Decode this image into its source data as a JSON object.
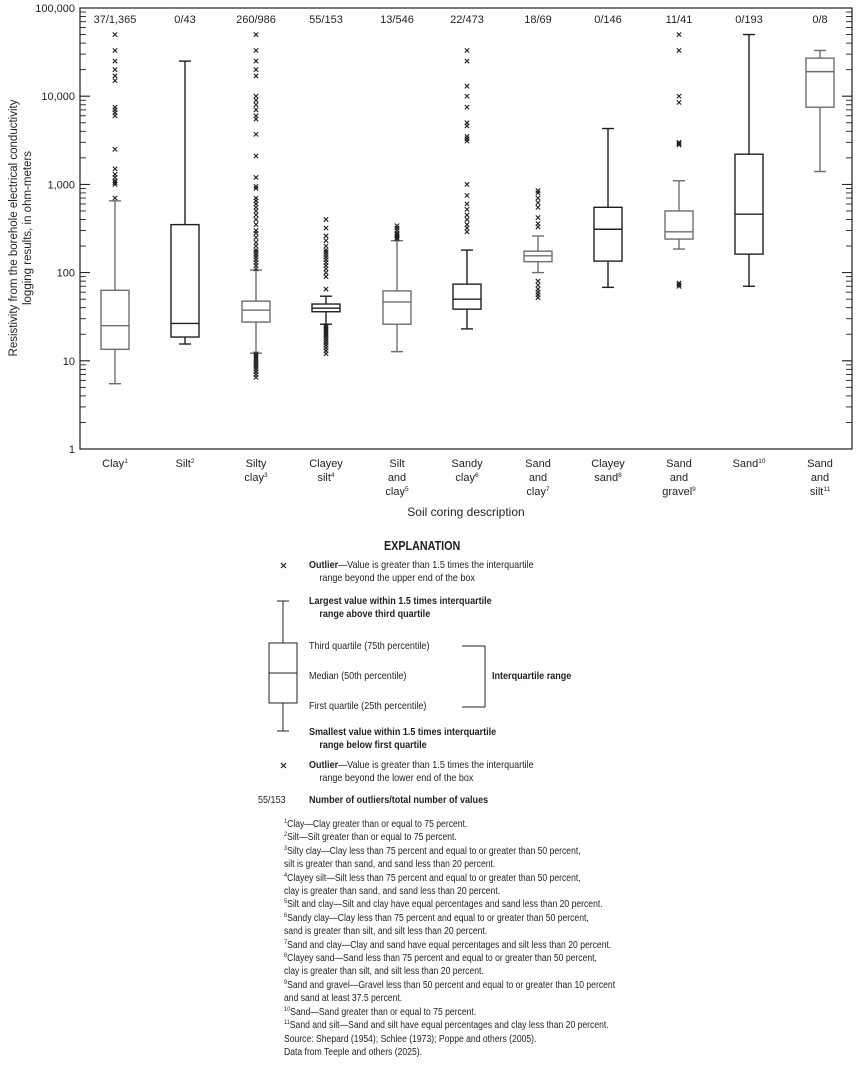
{
  "chart_data": {
    "type": "box",
    "title": "",
    "xlabel": "Soil coring description",
    "ylabel": "Resistivity from the borehole electrical conductivity logging results, in ohm-meters",
    "yscale": "log",
    "ylim": [
      1,
      100000
    ],
    "yticks": [
      {
        "value": 1,
        "label": "1"
      },
      {
        "value": 10,
        "label": "10"
      },
      {
        "value": 100,
        "label": "100"
      },
      {
        "value": 1000,
        "label": "1,000"
      },
      {
        "value": 10000,
        "label": "10,000"
      },
      {
        "value": 100000,
        "label": "100,000"
      }
    ],
    "grid": false,
    "categories": [
      {
        "label": [
          "Clay"
        ],
        "footnote": "1",
        "counts": "37/1,365",
        "whisker_low": 5.5,
        "q1": 13.5,
        "median": 25,
        "q3": 63,
        "whisker_high": 650,
        "outliers": [
          700,
          1000,
          1050,
          1100,
          1200,
          1300,
          1500,
          2500,
          6000,
          6500,
          7000,
          7500,
          15000,
          17000,
          20000,
          25000,
          33000,
          50000
        ]
      },
      {
        "label": [
          "Silt"
        ],
        "footnote": "2",
        "counts": "0/43",
        "whisker_low": 15.5,
        "q1": 18.6,
        "median": 26.5,
        "q3": 350,
        "whisker_high": 25000,
        "outliers": []
      },
      {
        "label": [
          "Silty",
          "clay"
        ],
        "footnote": "3",
        "counts": "260/986",
        "whisker_low": 12.2,
        "q1": 27.5,
        "median": 37.5,
        "q3": 47.5,
        "whisker_high": 107,
        "outliers": [
          6.5,
          7,
          7.5,
          8,
          8.5,
          9,
          9.5,
          10,
          10.5,
          11,
          11.5,
          12,
          110,
          120,
          130,
          140,
          150,
          160,
          170,
          180,
          200,
          220,
          250,
          280,
          300,
          350,
          400,
          450,
          500,
          550,
          600,
          650,
          700,
          900,
          950,
          1200,
          2100,
          3700,
          5500,
          6000,
          7000,
          8000,
          9000,
          10000,
          17000,
          20000,
          25000,
          33000,
          50000
        ]
      },
      {
        "label": [
          "Clayey",
          "silt"
        ],
        "footnote": "4",
        "counts": "55/153",
        "whisker_low": 26,
        "q1": 36,
        "median": 39.5,
        "q3": 44,
        "whisker_high": 54,
        "outliers": [
          12,
          13,
          14,
          15,
          16,
          17,
          18,
          19,
          20,
          21,
          22,
          23,
          24,
          25,
          65,
          90,
          100,
          110,
          120,
          130,
          140,
          150,
          160,
          170,
          180,
          200,
          230,
          260,
          320,
          400
        ]
      },
      {
        "label": [
          "Silt",
          "and",
          "clay"
        ],
        "footnote": "5",
        "counts": "13/546",
        "whisker_low": 12.7,
        "q1": 26,
        "median": 46.5,
        "q3": 62,
        "whisker_high": 230,
        "outliers": [
          240,
          250,
          260,
          270,
          280,
          300,
          320,
          340
        ]
      },
      {
        "label": [
          "Sandy",
          "clay"
        ],
        "footnote": "6",
        "counts": "22/473",
        "whisker_low": 23,
        "q1": 38.5,
        "median": 50,
        "q3": 74,
        "whisker_high": 180,
        "outliers": [
          290,
          320,
          350,
          400,
          450,
          520,
          600,
          750,
          1000,
          3100,
          3300,
          3500,
          4600,
          5000,
          7500,
          10000,
          13000,
          25000,
          33000
        ]
      },
      {
        "label": [
          "Sand",
          "and",
          "clay"
        ],
        "footnote": "7",
        "counts": "18/69",
        "whisker_low": 100,
        "q1": 133,
        "median": 155,
        "q3": 175,
        "whisker_high": 260,
        "outliers": [
          52,
          56,
          60,
          65,
          72,
          80,
          330,
          360,
          420,
          550,
          620,
          700,
          800,
          850
        ]
      },
      {
        "label": [
          "Clayey",
          "sand"
        ],
        "footnote": "8",
        "counts": "0/146",
        "whisker_low": 68,
        "q1": 135,
        "median": 310,
        "q3": 550,
        "whisker_high": 4300,
        "outliers": []
      },
      {
        "label": [
          "Sand",
          "and",
          "gravel"
        ],
        "footnote": "9",
        "counts": "11/41",
        "whisker_low": 185,
        "q1": 240,
        "median": 290,
        "q3": 500,
        "whisker_high": 1100,
        "outliers": [
          70,
          73,
          76,
          2800,
          2900,
          3000,
          8500,
          10000,
          33000,
          50000
        ]
      },
      {
        "label": [
          "Sand"
        ],
        "footnote": "10",
        "counts": "0/193",
        "whisker_low": 70,
        "q1": 162,
        "median": 460,
        "q3": 2200,
        "whisker_high": 50000,
        "outliers": []
      },
      {
        "label": [
          "Sand",
          "and",
          "silt"
        ],
        "footnote": "11",
        "counts": "0/8",
        "whisker_low": 1400,
        "q1": 7500,
        "median": 19000,
        "q3": 27000,
        "whisker_high": 33000,
        "outliers": []
      }
    ]
  },
  "explanation": {
    "title": "EXPLANATION",
    "outlier_upper_bold": "Outlier",
    "outlier_upper_rest": "—Value is greater than 1.5 times the interquartile",
    "outlier_upper_line2": "range beyond the upper end of the box",
    "largest_line1": "Largest value within 1.5 times interquartile",
    "largest_line2": "range above third quartile",
    "third_quartile": "Third quartile (75th percentile)",
    "median": "Median (50th percentile)",
    "first_quartile": "First quartile (25th percentile)",
    "iqr": "Interquartile range",
    "smallest_line1": "Smallest value within 1.5 times interquartile",
    "smallest_line2": "range below first quartile",
    "outlier_lower_bold": "Outlier",
    "outlier_lower_rest": "—Value is greater than 1.5 times the interquartile",
    "outlier_lower_line2": "range beyond the lower end of the box",
    "count_example": "55/153",
    "count_desc": "Number of outliers/total number of values"
  },
  "footnotes": [
    {
      "n": "1",
      "lines": [
        "Clay—Clay greater than or equal to 75 percent."
      ]
    },
    {
      "n": "2",
      "lines": [
        "Silt—Silt greater than or equal to 75 percent."
      ]
    },
    {
      "n": "3",
      "lines": [
        "Silty clay—Clay less than 75 percent and equal to or greater than 50 percent,",
        "silt is greater than sand, and sand less than 20 percent."
      ]
    },
    {
      "n": "4",
      "lines": [
        "Clayey silt—Silt less than 75 percent and equal to or greater than 50 percent,",
        "clay is greater than sand, and sand less than 20 percent."
      ]
    },
    {
      "n": "5",
      "lines": [
        "Silt and clay—Silt and clay have equal percentages and sand less than 20 percent."
      ]
    },
    {
      "n": "6",
      "lines": [
        "Sandy clay—Clay less than 75 percent and equal to or greater than 50 percent,",
        "sand is greater than silt, and silt less than 20 percent."
      ]
    },
    {
      "n": "7",
      "lines": [
        "Sand and clay—Clay and sand have equal percentages and silt less than 20 percent."
      ]
    },
    {
      "n": "8",
      "lines": [
        "Clayey sand—Sand less than 75 percent and equal to or greater than 50 percent,",
        "clay is greater than silt, and silt less than 20 percent."
      ]
    },
    {
      "n": "9",
      "lines": [
        "Sand and gravel—Gravel less than 50 percent and equal to or greater than 10 percent",
        "and sand at least 37.5 percent."
      ]
    },
    {
      "n": "10",
      "lines": [
        "Sand—Sand greater than or equal to 75 percent."
      ]
    },
    {
      "n": "11",
      "lines": [
        "Sand and silt—Sand and silt have equal percentages and clay less than 20 percent."
      ]
    }
  ],
  "source": "Source: Shepard (1954); Schlee (1973); Poppe and others (2005).",
  "data_credit": "Data from Teeple and others (2025).",
  "colors": {
    "axis": "#231f20",
    "box_stroke_gray": "#6d6e71",
    "box_stroke_black": "#231f20",
    "text": "#231f20"
  }
}
